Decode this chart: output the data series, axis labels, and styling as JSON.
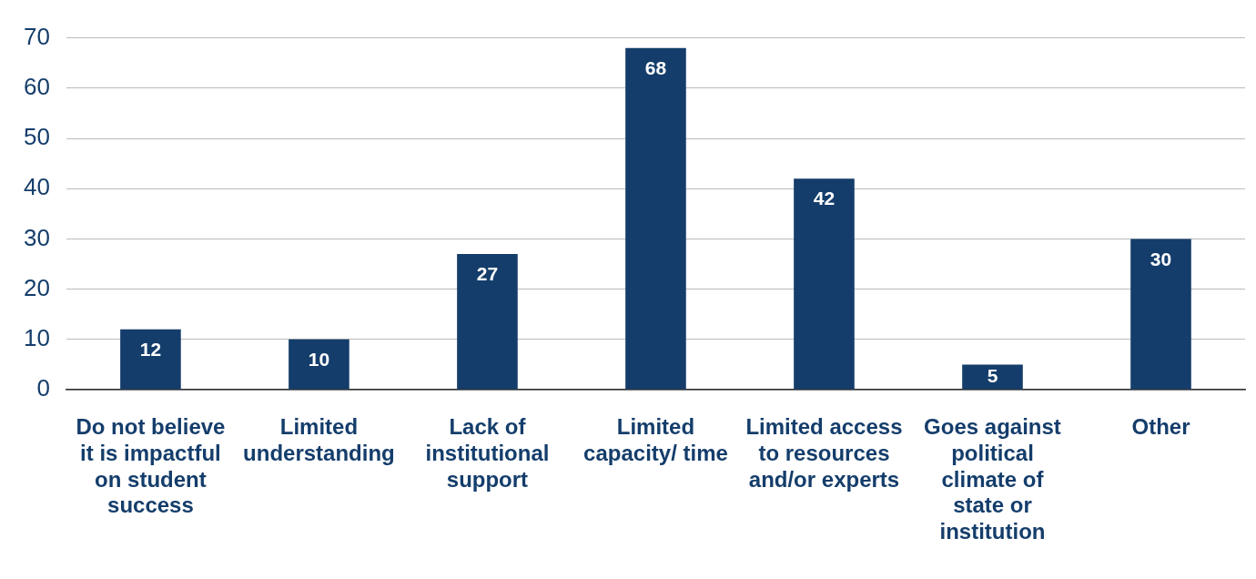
{
  "chart_data": {
    "type": "bar",
    "categories": [
      "Do not believe it is impactful on student success",
      "Limited understanding",
      "Lack of institutional support",
      "Limited capacity/ time",
      "Limited access to resources and/or experts",
      "Goes against political climate of state or institution",
      "Other"
    ],
    "values": [
      12,
      10,
      27,
      68,
      42,
      5,
      30
    ],
    "color": "#143d6b",
    "ylim": [
      0,
      70
    ],
    "yticks": [
      0,
      10,
      20,
      30,
      40,
      50,
      60,
      70
    ],
    "grid": "y",
    "data_labels": true
  }
}
